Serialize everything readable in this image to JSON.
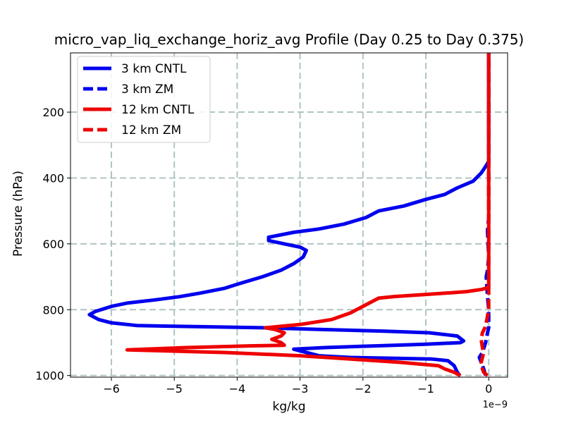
{
  "chart_data": {
    "type": "line",
    "title": "micro_vap_liq_exchange_horiz_avg Profile (Day 0.25 to Day 0.375)",
    "xlabel": "kg/kg",
    "ylabel": "Pressure (hPa)",
    "x_offset_label": "1e−9",
    "xlim": [
      -6.65,
      0.3
    ],
    "ylim": [
      1005,
      20
    ],
    "y_inverted": true,
    "grid": true,
    "legend_position": "upper-left",
    "x_ticks": [
      -6,
      -5,
      -4,
      -3,
      -2,
      -1,
      0
    ],
    "x_tick_labels": [
      "−6",
      "−5",
      "−4",
      "−3",
      "−2",
      "−1",
      "0"
    ],
    "y_ticks": [
      200,
      400,
      600,
      800,
      1000
    ],
    "y_tick_labels": [
      "200",
      "400",
      "600",
      "800",
      "1000"
    ],
    "series": [
      {
        "name": "3 km CNTL",
        "color": "#0000ee",
        "style": "solid",
        "x": [
          -0.46,
          -0.5,
          -0.55,
          -0.65,
          -0.9,
          -1.4,
          -2.2,
          -2.7,
          -3.1,
          -2.6,
          -1.8,
          -1.0,
          -0.45,
          -0.4,
          -0.5,
          -0.95,
          -1.7,
          -2.7,
          -3.6,
          -4.5,
          -5.1,
          -5.6,
          -6.0,
          -6.2,
          -6.35,
          -6.25,
          -6.0,
          -5.75,
          -5.3,
          -4.9,
          -4.6,
          -4.2,
          -3.95,
          -3.6,
          -3.3,
          -3.1,
          -2.95,
          -2.9,
          -3.0,
          -3.25,
          -3.5,
          -3.5,
          -3.1,
          -2.7,
          -2.3,
          -1.95,
          -1.75,
          -1.35,
          -1.0,
          -0.7,
          -0.5,
          -0.25,
          -0.12,
          -0.05,
          0.0,
          0.0,
          0.0
        ],
        "y": [
          1000,
          990,
          970,
          955,
          950,
          948,
          945,
          940,
          920,
          915,
          910,
          905,
          900,
          895,
          880,
          870,
          865,
          860,
          855,
          852,
          850,
          848,
          840,
          830,
          815,
          805,
          790,
          780,
          770,
          760,
          750,
          735,
          720,
          700,
          680,
          660,
          640,
          620,
          610,
          600,
          590,
          580,
          565,
          555,
          540,
          520,
          500,
          485,
          465,
          450,
          430,
          410,
          385,
          365,
          350,
          200,
          20
        ]
      },
      {
        "name": "3 km ZM",
        "color": "#0000ee",
        "style": "dashed",
        "x": [
          -0.05,
          -0.08,
          -0.12,
          -0.15,
          -0.1,
          -0.05,
          -0.02,
          0.0,
          0.0,
          0.0,
          -0.02,
          -0.04,
          -0.02,
          0.0,
          -0.01,
          -0.02,
          0.0,
          0.0,
          0.0
        ],
        "y": [
          1000,
          980,
          960,
          945,
          930,
          900,
          870,
          855,
          840,
          800,
          760,
          700,
          680,
          640,
          600,
          560,
          520,
          300,
          20
        ]
      },
      {
        "name": "12 km CNTL",
        "color": "#ee0000",
        "style": "solid",
        "x": [
          -0.45,
          -0.55,
          -0.7,
          -0.8,
          -1.4,
          -2.2,
          -3.0,
          -4.2,
          -5.75,
          -4.8,
          -3.8,
          -3.25,
          -3.3,
          -3.45,
          -3.3,
          -3.25,
          -3.4,
          -3.55,
          -3.0,
          -2.5,
          -2.2,
          -1.9,
          -1.75,
          -1.5,
          -1.1,
          -0.7,
          -0.35,
          -0.1,
          0.0,
          0.0,
          0.0
        ],
        "y": [
          1000,
          990,
          980,
          970,
          960,
          950,
          940,
          930,
          922,
          915,
          910,
          908,
          900,
          890,
          880,
          870,
          860,
          855,
          845,
          830,
          810,
          780,
          765,
          760,
          755,
          750,
          745,
          738,
          732,
          500,
          20
        ]
      },
      {
        "name": "12 km ZM",
        "color": "#ee0000",
        "style": "dashed",
        "x": [
          -0.02,
          -0.08,
          -0.1,
          -0.12,
          -0.1,
          -0.08,
          -0.1,
          -0.12,
          -0.1,
          -0.06,
          -0.03,
          -0.01,
          0.0,
          0.0,
          0.0
        ],
        "y": [
          1000,
          990,
          980,
          960,
          945,
          930,
          915,
          890,
          870,
          855,
          830,
          810,
          800,
          780,
          20
        ]
      }
    ]
  }
}
